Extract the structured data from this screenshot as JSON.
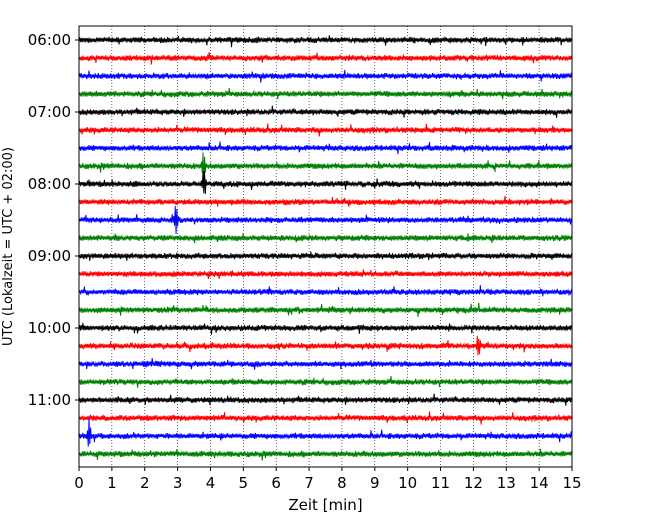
{
  "chart_data": {
    "type": "line",
    "title": "",
    "xlabel": "Zeit  [min]",
    "ylabel": "UTC (Lokalzeit = UTC + 02:00)",
    "xlim": [
      0,
      15
    ],
    "x_ticks": [
      0,
      1,
      2,
      3,
      4,
      5,
      6,
      7,
      8,
      9,
      10,
      11,
      12,
      13,
      14,
      15
    ],
    "x_tick_labels": [
      "0",
      "1",
      "2",
      "3",
      "4",
      "5",
      "6",
      "7",
      "8",
      "9",
      "10",
      "11",
      "12",
      "13",
      "14",
      "15"
    ],
    "y_tick_labels": [
      "06:00",
      "07:00",
      "08:00",
      "09:00",
      "10:00",
      "11:00"
    ],
    "trace_colors": [
      "#000000",
      "#ff0000",
      "#0000ff",
      "#008000"
    ],
    "trace_start_times": [
      "06:00",
      "06:15",
      "06:30",
      "06:45",
      "07:00",
      "07:15",
      "07:30",
      "07:45",
      "08:00",
      "08:15",
      "08:30",
      "08:45",
      "09:00",
      "09:15",
      "09:30",
      "09:45",
      "10:00",
      "10:15",
      "10:30",
      "10:45",
      "11:00",
      "11:15",
      "11:30",
      "11:45"
    ],
    "grid": "vertical dotted at each minute",
    "notable_events": [
      {
        "trace": "08:30",
        "minute": 2.95,
        "color": "#0000ff"
      },
      {
        "trace": "10:15",
        "minute": 12.15,
        "color": "#ff0000"
      },
      {
        "trace": "11:30",
        "minute": 0.3,
        "color": "#0000ff"
      },
      {
        "trace": "08:00",
        "minute": 3.8,
        "color": "#000000"
      },
      {
        "trace": "07:45",
        "minute": 3.8,
        "color": "#008000"
      }
    ]
  }
}
